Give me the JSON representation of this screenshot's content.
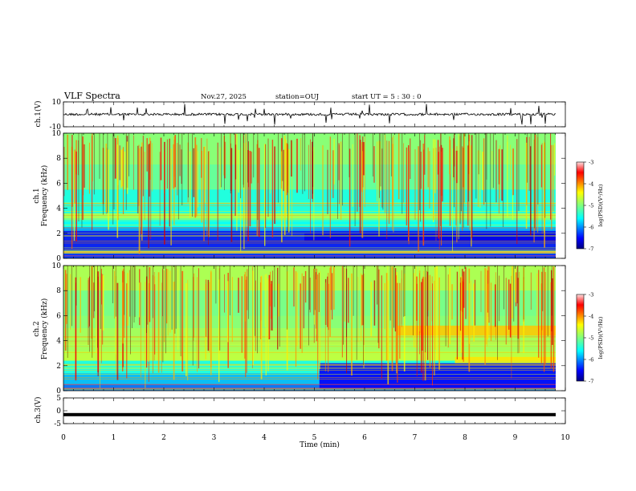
{
  "header": {
    "title": "VLF Spectra",
    "date": "Nov.27, 2025",
    "station": "station=OUJ",
    "start_ut": "start  UT  =   5  : 30 : 0"
  },
  "chart_data": [
    {
      "type": "line",
      "panel": "ch1-waveform",
      "ylabel": "ch.1(V)",
      "ylim": [
        -10,
        10
      ],
      "yticks": [
        "10",
        "-10"
      ],
      "baseline": 0,
      "series": [
        {
          "name": "ch.1",
          "description": "noise around 0 V with sharp spikes"
        }
      ]
    },
    {
      "type": "heatmap",
      "panel": "ch1-spectrogram",
      "ylabel": "Frequency (kHz)",
      "channel": "ch.1",
      "ylim": [
        0,
        10
      ],
      "yticks": [
        "0",
        "2",
        "4",
        "6",
        "8",
        "10"
      ],
      "colorbar": {
        "label": "log(PSD)(V²/Hz)",
        "range": [
          -7,
          -3
        ],
        "ticks": [
          "-3",
          "-4",
          "-5",
          "-6",
          "-7"
        ]
      }
    },
    {
      "type": "heatmap",
      "panel": "ch2-spectrogram",
      "ylabel": "Frequency (kHz)",
      "channel": "ch.2",
      "ylim": [
        0,
        10
      ],
      "yticks": [
        "0",
        "2",
        "4",
        "6",
        "8",
        "10"
      ],
      "colorbar": {
        "label": "log(PSD)(V²/Hz)",
        "range": [
          -7,
          -3
        ],
        "ticks": [
          "-3",
          "-4",
          "-5",
          "-6",
          "-7"
        ]
      }
    },
    {
      "type": "line",
      "panel": "ch3-waveform",
      "ylabel": "ch.3(V)",
      "ylim": [
        -5,
        5
      ],
      "yticks": [
        "5",
        "0",
        "-5"
      ],
      "series": [
        {
          "name": "ch.3",
          "values": [
            -1.5
          ]
        }
      ]
    }
  ],
  "xaxis": {
    "label": "Time (min)",
    "range": [
      0,
      10
    ],
    "ticks": [
      "0",
      "1",
      "2",
      "3",
      "4",
      "5",
      "6",
      "7",
      "8",
      "9",
      "10"
    ]
  }
}
